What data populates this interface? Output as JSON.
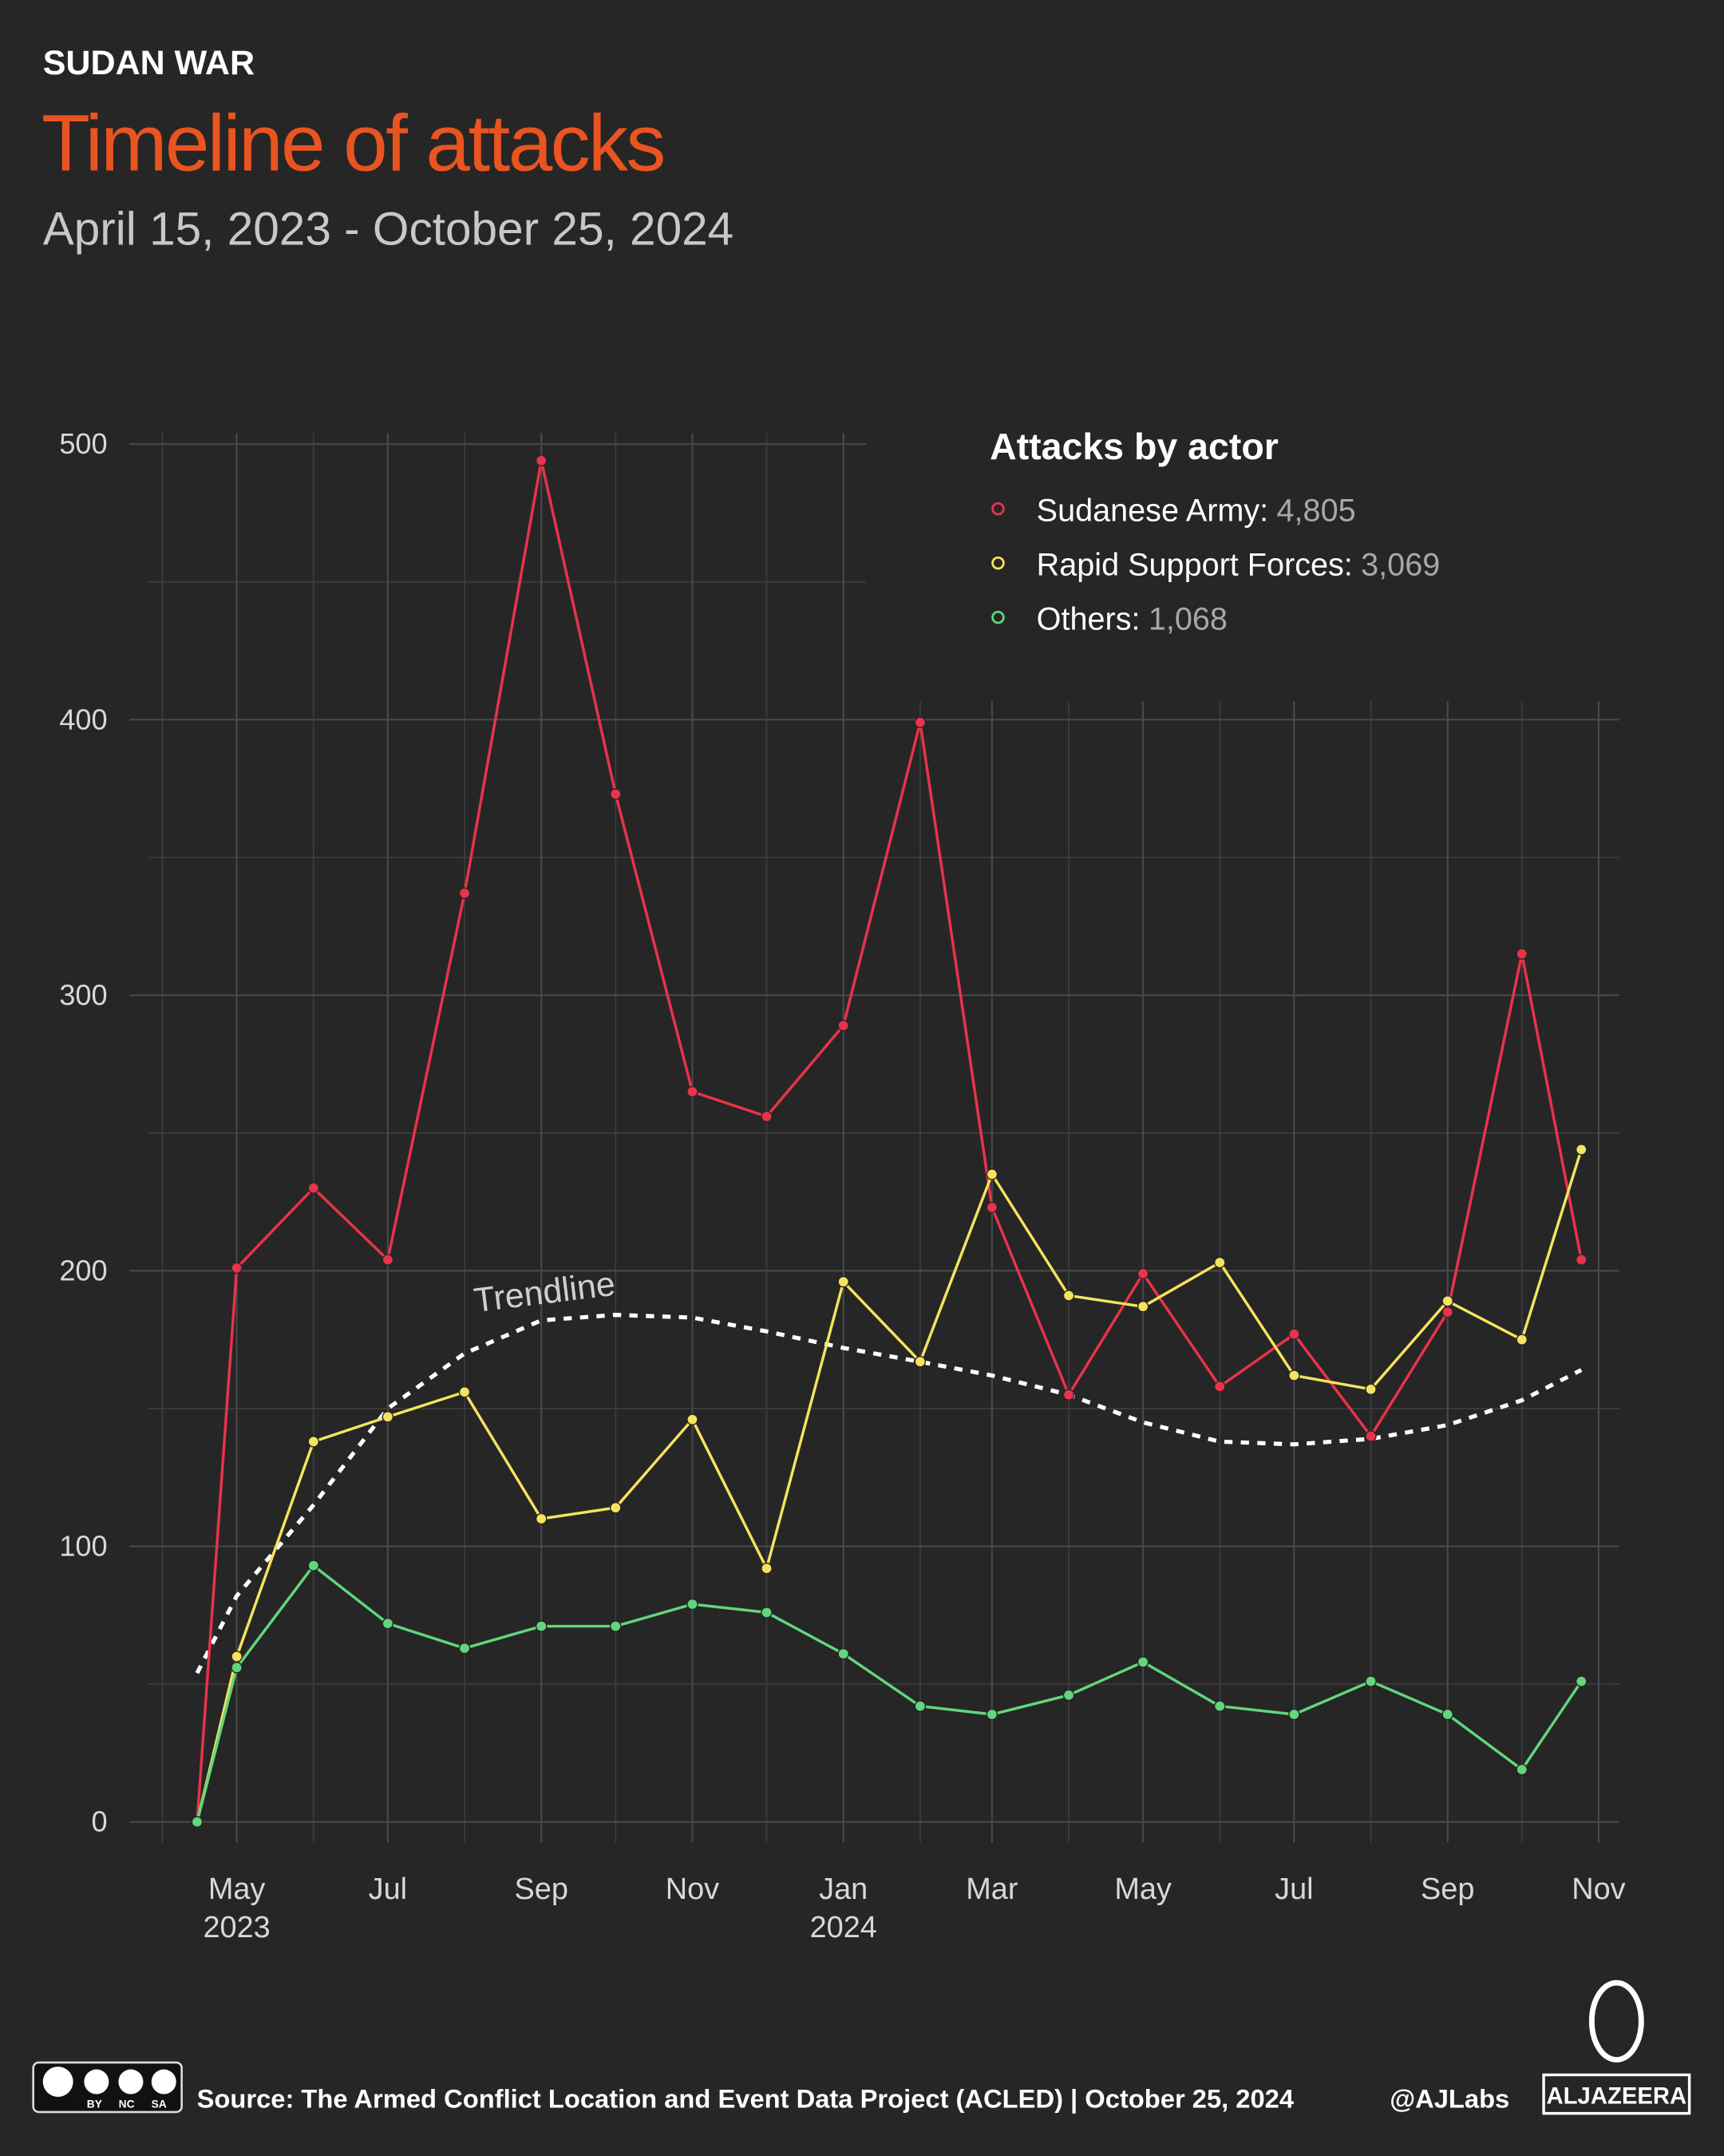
{
  "header": {
    "kicker": "SUDAN WAR",
    "title": "Timeline of attacks",
    "subtitle": "April 15, 2023 - October 25, 2024"
  },
  "chart_data": {
    "type": "line",
    "trend_label": "Trendline",
    "legend_title": "Attacks by actor",
    "legend": "top-right",
    "grid": true,
    "x": [
      "2023-04-15",
      "2023-05",
      "2023-06",
      "2023-07",
      "2023-08",
      "2023-09",
      "2023-10",
      "2023-11",
      "2023-12",
      "2024-01",
      "2024-02",
      "2024-03",
      "2024-04",
      "2024-05",
      "2024-06",
      "2024-07",
      "2024-08",
      "2024-09",
      "2024-10",
      "2024-10-25"
    ],
    "xlim": [
      "2023-04",
      "2024-11"
    ],
    "xticks": [
      {
        "value": "2023-05",
        "label": "May 2023"
      },
      {
        "value": "2023-07",
        "label": "Jul"
      },
      {
        "value": "2023-09",
        "label": "Sep"
      },
      {
        "value": "2023-11",
        "label": "Nov"
      },
      {
        "value": "2024-01",
        "label": "Jan 2024"
      },
      {
        "value": "2024-03",
        "label": "Mar"
      },
      {
        "value": "2024-05",
        "label": "May"
      },
      {
        "value": "2024-07",
        "label": "Jul"
      },
      {
        "value": "2024-09",
        "label": "Sep"
      },
      {
        "value": "2024-11",
        "label": "Nov"
      }
    ],
    "ylim": [
      0,
      500
    ],
    "yticks": [
      0,
      100,
      200,
      300,
      400,
      500
    ],
    "series": [
      {
        "name": "Sudanese Army:",
        "total": {
          "value": 4805,
          "label": "4,805"
        },
        "color": "#e8334a",
        "values": [
          0,
          201,
          230,
          204,
          337,
          494,
          373,
          265,
          256,
          289,
          399,
          223,
          155,
          199,
          158,
          177,
          140,
          185,
          315,
          204
        ]
      },
      {
        "name": "Rapid Support Forces:",
        "total": {
          "value": 3069,
          "label": "3,069"
        },
        "color": "#f5e35f",
        "values": [
          0,
          60,
          138,
          147,
          156,
          110,
          114,
          146,
          92,
          196,
          167,
          235,
          191,
          187,
          203,
          162,
          157,
          189,
          175,
          244
        ]
      },
      {
        "name": "Others:",
        "total": {
          "value": 1068,
          "label": "1,068"
        },
        "color": "#62d67c",
        "values": [
          0,
          56,
          93,
          72,
          63,
          71,
          71,
          79,
          76,
          61,
          42,
          39,
          46,
          58,
          42,
          39,
          51,
          39,
          19,
          51
        ]
      }
    ],
    "trend": {
      "color": "#ffffff",
      "values": [
        54,
        82,
        115,
        150,
        170,
        182,
        184,
        183,
        178,
        172,
        167,
        162,
        155,
        145,
        138,
        137,
        139,
        144,
        153,
        164
      ]
    }
  },
  "footer": {
    "license": "BY NC SA",
    "source": "Source: The Armed Conflict Location and Event Data Project (ACLED) | October 25, 2024",
    "handle": "@AJLabs",
    "brand": "ALJAZEERA"
  }
}
